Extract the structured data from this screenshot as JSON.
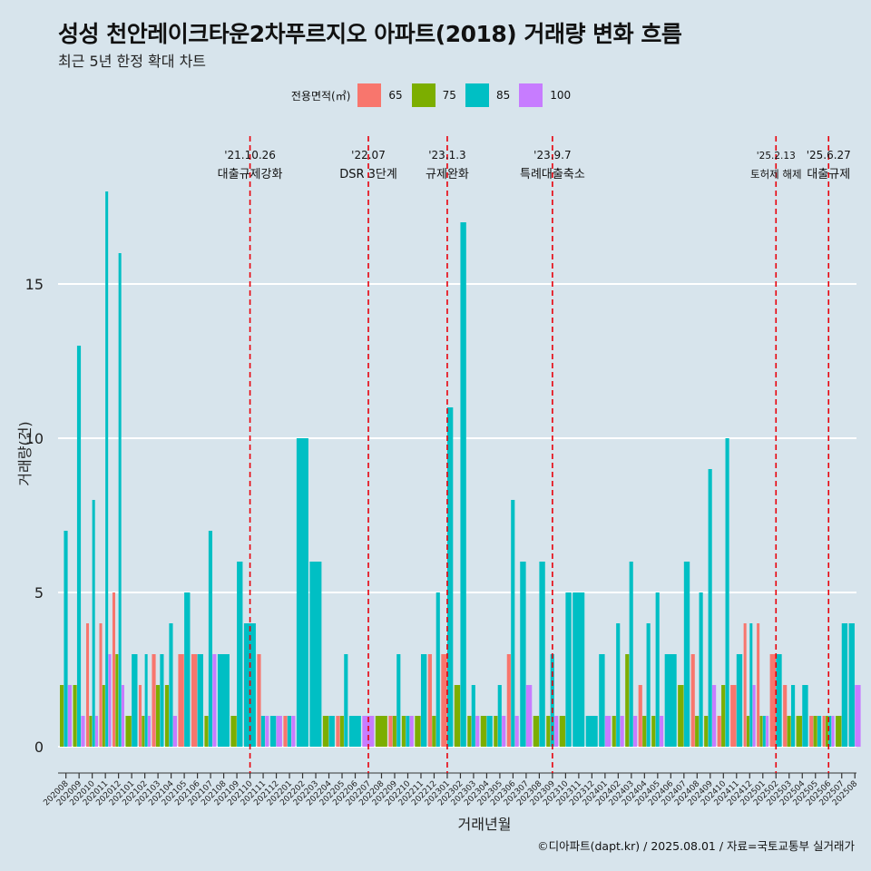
{
  "title": "성성 천안레이크타운2차푸르지오 아파트(2018) 거래량 변화 흐름",
  "subtitle": "최근 5년 한정 확대 차트",
  "caption": "©디아파트(dapt.kr) / 2025.08.01 / 자료=국토교통부 실거래가",
  "legend": {
    "title": "전용면적(㎡)",
    "items": [
      {
        "label": "65",
        "color": "#f8766d"
      },
      {
        "label": "75",
        "color": "#7cae00"
      },
      {
        "label": "85",
        "color": "#00bfc4"
      },
      {
        "label": "100",
        "color": "#c77cff"
      }
    ]
  },
  "chart_data": {
    "type": "bar",
    "xlabel": "거래년월",
    "ylabel": "거래량(건)",
    "ylim": [
      0,
      18
    ],
    "yticks": [
      0,
      5,
      10,
      15
    ],
    "grid": true,
    "categories": [
      "202008",
      "202009",
      "202010",
      "202011",
      "202012",
      "202101",
      "202102",
      "202103",
      "202104",
      "202105",
      "202106",
      "202107",
      "202108",
      "202109",
      "202110",
      "202111",
      "202112",
      "202201",
      "202202",
      "202203",
      "202204",
      "202205",
      "202206",
      "202207",
      "202208",
      "202209",
      "202210",
      "202211",
      "202212",
      "202301",
      "202302",
      "202303",
      "202304",
      "202305",
      "202306",
      "202307",
      "202308",
      "202309",
      "202310",
      "202311",
      "202312",
      "202401",
      "202402",
      "202403",
      "202404",
      "202405",
      "202406",
      "202407",
      "202408",
      "202409",
      "202410",
      "202411",
      "202412",
      "202501",
      "202502",
      "202503",
      "202504",
      "202505",
      "202506",
      "202507",
      "202508"
    ],
    "series": [
      {
        "name": "65",
        "color": "#f8766d",
        "values": [
          0,
          0,
          4,
          4,
          5,
          0,
          2,
          3,
          0,
          3,
          3,
          0,
          0,
          0,
          0,
          3,
          0,
          1,
          0,
          0,
          0,
          1,
          0,
          0,
          0,
          1,
          0,
          0,
          3,
          3,
          0,
          0,
          0,
          0,
          3,
          0,
          0,
          0,
          0,
          0,
          0,
          0,
          0,
          0,
          2,
          0,
          0,
          0,
          3,
          0,
          1,
          2,
          4,
          4,
          3,
          2,
          0,
          1,
          1,
          0,
          0
        ]
      },
      {
        "name": "75",
        "color": "#7cae00",
        "values": [
          2,
          2,
          1,
          2,
          3,
          1,
          1,
          2,
          2,
          0,
          0,
          1,
          0,
          1,
          0,
          0,
          0,
          0,
          0,
          0,
          1,
          1,
          0,
          0,
          1,
          1,
          1,
          1,
          1,
          0,
          2,
          1,
          1,
          1,
          0,
          0,
          1,
          1,
          1,
          0,
          0,
          0,
          1,
          3,
          1,
          1,
          0,
          2,
          1,
          1,
          2,
          0,
          1,
          1,
          0,
          1,
          1,
          1,
          1,
          1,
          0
        ]
      },
      {
        "name": "85",
        "color": "#00bfc4",
        "values": [
          7,
          13,
          8,
          18,
          16,
          3,
          3,
          3,
          4,
          5,
          3,
          7,
          3,
          6,
          4,
          1,
          1,
          1,
          10,
          6,
          1,
          3,
          1,
          0,
          0,
          3,
          1,
          3,
          5,
          11,
          17,
          2,
          1,
          2,
          8,
          6,
          6,
          3,
          5,
          5,
          1,
          3,
          4,
          6,
          4,
          5,
          3,
          6,
          5,
          9,
          10,
          3,
          4,
          1,
          3,
          2,
          2,
          1,
          1,
          4,
          4
        ]
      },
      {
        "name": "100",
        "color": "#c77cff",
        "values": [
          2,
          1,
          1,
          3,
          2,
          0,
          1,
          0,
          1,
          0,
          0,
          3,
          0,
          0,
          0,
          1,
          1,
          1,
          0,
          0,
          0,
          0,
          0,
          1,
          0,
          0,
          1,
          0,
          0,
          0,
          0,
          1,
          0,
          1,
          1,
          2,
          0,
          1,
          0,
          0,
          0,
          1,
          1,
          1,
          0,
          1,
          0,
          0,
          0,
          2,
          0,
          0,
          2,
          1,
          0,
          0,
          0,
          0,
          1,
          0,
          2
        ]
      }
    ],
    "events": [
      {
        "at": "202110",
        "date": "'21.10.26",
        "label": "대출규제강화"
      },
      {
        "at": "202207",
        "date": "'22.07",
        "label": "DSR 3단계"
      },
      {
        "at": "202301",
        "date": "'23.1.3",
        "label": "규제완화"
      },
      {
        "at": "202309",
        "date": "'23.9.7",
        "label": "특례대출축소"
      },
      {
        "at": "202502",
        "date": "'25.2.13",
        "label": "토허제 해제"
      },
      {
        "at": "202506",
        "date": "'25.6.27",
        "label": "대출규제"
      }
    ]
  }
}
